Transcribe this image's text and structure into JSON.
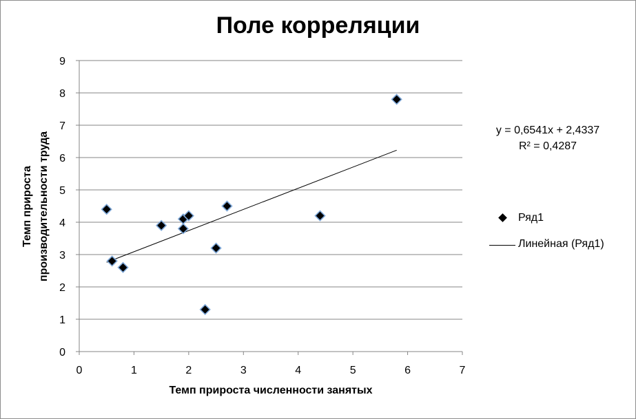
{
  "chart_data": {
    "type": "scatter",
    "title": "Поле корреляции",
    "xlabel": "Темп прироста численности занятых",
    "ylabel_lines": [
      "Темп прироста",
      "производительности труда"
    ],
    "xlim": [
      0,
      7
    ],
    "ylim": [
      0,
      9
    ],
    "x_ticks": [
      "0",
      "1",
      "2",
      "3",
      "4",
      "5",
      "6",
      "7"
    ],
    "y_ticks": [
      "0",
      "1",
      "2",
      "3",
      "4",
      "5",
      "6",
      "7",
      "8",
      "9"
    ],
    "grid": "horizontal",
    "legend_position": "right",
    "series": [
      {
        "name": "Ряд1",
        "points": [
          {
            "x": 0.5,
            "y": 4.4
          },
          {
            "x": 0.6,
            "y": 2.8
          },
          {
            "x": 0.8,
            "y": 2.6
          },
          {
            "x": 1.5,
            "y": 3.9
          },
          {
            "x": 1.9,
            "y": 4.1
          },
          {
            "x": 1.9,
            "y": 3.8
          },
          {
            "x": 2.0,
            "y": 4.2
          },
          {
            "x": 2.3,
            "y": 1.3
          },
          {
            "x": 2.5,
            "y": 3.2
          },
          {
            "x": 2.7,
            "y": 4.5
          },
          {
            "x": 4.4,
            "y": 4.2
          },
          {
            "x": 5.8,
            "y": 7.8
          }
        ]
      }
    ],
    "trendline": {
      "name": "Линейная (Ряд1)",
      "slope": 0.6541,
      "intercept": 2.4337,
      "x_from": 0.5,
      "x_to": 5.8,
      "equation": "y = 0,6541x + 2,4337",
      "r_squared": "R² = 0,4287"
    },
    "colors": {
      "marker_fill": "#000000",
      "marker_edge": "#7da7d8",
      "grid": "#868686",
      "axis": "#868686",
      "trendline": "#000000"
    }
  }
}
